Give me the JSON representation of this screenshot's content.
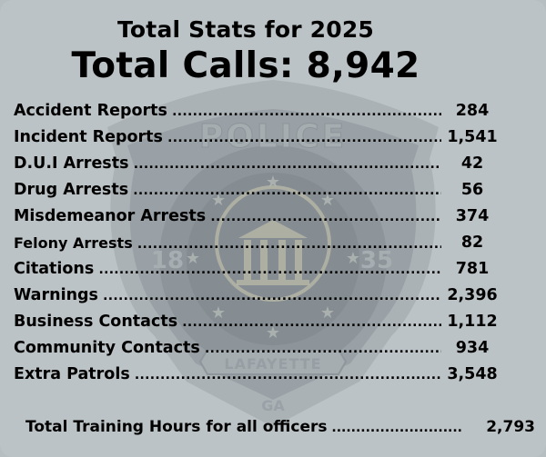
{
  "header": {
    "subtitle": "Total Stats for 2025",
    "title": "Total Calls: 8,942"
  },
  "stats": [
    {
      "label": "Accident Reports",
      "value": "284"
    },
    {
      "label": "Incident Reports",
      "value": "1,541"
    },
    {
      "label": "D.U.I Arrests",
      "value": "42"
    },
    {
      "label": "Drug Arrests",
      "value": "56"
    },
    {
      "label": "Misdemeanor Arrests",
      "value": "374"
    },
    {
      "label": "Felony Arrests",
      "value": "82"
    },
    {
      "label": "Citations",
      "value": "781"
    },
    {
      "label": "Warnings",
      "value": "2,396"
    },
    {
      "label": "Business Contacts",
      "value": "1,112"
    },
    {
      "label": "Community Contacts",
      "value": "934"
    },
    {
      "label": "Extra Patrols",
      "value": "3,548"
    }
  ],
  "training": {
    "label": "Total Training Hours for all officers",
    "value": "2,793"
  },
  "watermark": {
    "top_text": "POLICE",
    "left_year": "18",
    "right_year": "35",
    "banner": "LAFAYETTE",
    "bottom": "GA"
  },
  "colors": {
    "background": "#bcc3c6",
    "badge": "#a3aaae",
    "badge_dark": "#8f979c",
    "seal_gold": "#c8c7ae",
    "text": "#000000"
  }
}
